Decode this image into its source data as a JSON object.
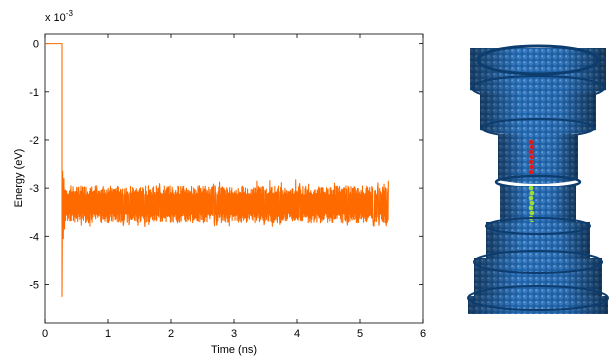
{
  "chart_data": {
    "type": "line",
    "xlabel": "Time (ns)",
    "ylabel": "Energy (eV)",
    "y_multiplier": {
      "base": "x 10",
      "exponent": "-3"
    },
    "xlim": [
      0,
      6
    ],
    "ylim": [
      -5.8,
      0.2
    ],
    "x_ticks": [
      {
        "value": 0,
        "label": "0"
      },
      {
        "value": 1,
        "label": "1"
      },
      {
        "value": 2,
        "label": "2"
      },
      {
        "value": 3,
        "label": "3"
      },
      {
        "value": 4,
        "label": "4"
      },
      {
        "value": 5,
        "label": "5"
      },
      {
        "value": 6,
        "label": "6"
      }
    ],
    "y_ticks": [
      {
        "value": 0,
        "label": "0"
      },
      {
        "value": -1,
        "label": "-1"
      },
      {
        "value": -2,
        "label": "-2"
      },
      {
        "value": -3,
        "label": "-3"
      },
      {
        "value": -4,
        "label": "-4"
      },
      {
        "value": -5,
        "label": "-5"
      }
    ],
    "grid": false,
    "legend": "none",
    "series": [
      {
        "color": "#ff6a00",
        "x": [
          0,
          0.27,
          0.27,
          0.28,
          0.29,
          0.3,
          0.31,
          0.32,
          0.34,
          0.36,
          0.4,
          0.45,
          0.5,
          0.6,
          0.7,
          0.8,
          0.9,
          1.0,
          1.1,
          1.2,
          1.3,
          1.4,
          1.5,
          1.6,
          1.7,
          1.8,
          1.9,
          2.0,
          2.2,
          2.4,
          2.6,
          2.8,
          3.0,
          3.2,
          3.4,
          3.6,
          3.8,
          4.0,
          4.2,
          4.4,
          4.6,
          4.8,
          5.0,
          5.2,
          5.4,
          5.45
        ],
        "y": [
          0,
          0,
          -5.25,
          -2.65,
          -4.05,
          -2.8,
          -3.85,
          -3.0,
          -3.7,
          -3.1,
          -3.6,
          -3.2,
          -3.5,
          -3.2,
          -3.55,
          -3.15,
          -3.5,
          -3.2,
          -3.6,
          -3.1,
          -3.55,
          -3.2,
          -3.5,
          -3.15,
          -3.45,
          -3.2,
          -3.55,
          -3.25,
          -3.5,
          -3.2,
          -3.55,
          -3.25,
          -3.5,
          -3.2,
          -3.6,
          -3.2,
          -3.5,
          -3.25,
          -3.5,
          -3.2,
          -3.55,
          -3.25,
          -3.5,
          -3.2,
          -3.5,
          -3.35
        ],
        "noise_band": {
          "x_start": 0.32,
          "x_end": 5.45,
          "y_low": -3.62,
          "y_high": -3.05,
          "spike_high": -2.92,
          "spike_low": -3.75
        }
      }
    ]
  },
  "side_image": {
    "description_icon": "nanotube-model-icon",
    "colors": {
      "tube": "#1f63a8",
      "tube_dark": "#0d3c6e",
      "tube_light": "#4f8fd1",
      "red_atoms": "#e01b1b",
      "green_atoms": "#9fdc3a"
    }
  }
}
